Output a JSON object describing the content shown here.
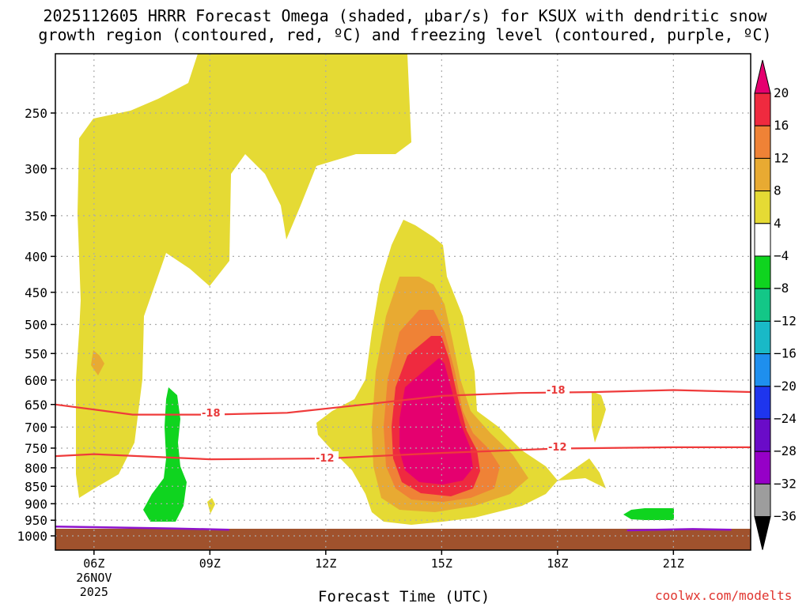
{
  "chart_data": {
    "type": "heatmap",
    "title_line1": "2025112605 HRRR Forecast Omega (shaded, μbar/s) for KSUX with dendritic snow",
    "title_line2": "growth region (contoured, red, ºC) and freezing level (contoured, purple, ºC)",
    "xlabel": "Forecast Time (UTC)",
    "ylabel": "",
    "credit": "coolwx.com/modelts",
    "x_ticks": [
      {
        "hour": 6,
        "label": "06Z",
        "sub1": "26NOV",
        "sub2": "2025"
      },
      {
        "hour": 9,
        "label": "09Z"
      },
      {
        "hour": 12,
        "label": "12Z"
      },
      {
        "hour": 15,
        "label": "15Z"
      },
      {
        "hour": 18,
        "label": "18Z"
      },
      {
        "hour": 21,
        "label": "21Z"
      }
    ],
    "x_range_hours": [
      5,
      23
    ],
    "y_axis": "pressure (hPa), reversed",
    "y_ticks": [
      250,
      300,
      350,
      400,
      450,
      500,
      550,
      600,
      650,
      700,
      750,
      800,
      850,
      900,
      950,
      1000
    ],
    "grid": true,
    "colorbar": {
      "labels": [
        20,
        16,
        12,
        8,
        4,
        -4,
        -8,
        -12,
        -16,
        -20,
        -24,
        -28,
        -32,
        -36
      ],
      "colors": [
        "#e5006f",
        "#ef2a3f",
        "#ef8236",
        "#e8aa32",
        "#e5da34",
        "#ffffff",
        "#0fd41f",
        "#13c787",
        "#19b9c7",
        "#1e8fee",
        "#1e35ee",
        "#6a0bc8",
        "#9600c7",
        "#9d9d9d",
        "#000000"
      ]
    },
    "contours_red": [
      {
        "label": "-18",
        "series": [
          {
            "hour": 5.0,
            "hPa": 650
          },
          {
            "hour": 7.0,
            "hPa": 672
          },
          {
            "hour": 9.0,
            "hPa": 672
          },
          {
            "hour": 11.0,
            "hPa": 668
          },
          {
            "hour": 13.0,
            "hPa": 650
          },
          {
            "hour": 15.0,
            "hPa": 632
          },
          {
            "hour": 17.0,
            "hPa": 626
          },
          {
            "hour": 19.0,
            "hPa": 624
          },
          {
            "hour": 21.0,
            "hPa": 620
          },
          {
            "hour": 23.0,
            "hPa": 624
          }
        ]
      },
      {
        "label": "-12",
        "series": [
          {
            "hour": 5.0,
            "hPa": 770
          },
          {
            "hour": 6.0,
            "hPa": 765
          },
          {
            "hour": 9.0,
            "hPa": 778
          },
          {
            "hour": 12.0,
            "hPa": 776
          },
          {
            "hour": 15.0,
            "hPa": 762
          },
          {
            "hour": 18.0,
            "hPa": 751
          },
          {
            "hour": 21.0,
            "hPa": 748
          },
          {
            "hour": 23.0,
            "hPa": 748
          }
        ]
      }
    ],
    "contours_purple": [
      {
        "label": "0",
        "series": [
          {
            "hour": 5.0,
            "hPa": 970
          },
          {
            "hour": 8.0,
            "hPa": 976
          },
          {
            "hour": 9.5,
            "hPa": 980
          }
        ]
      },
      {
        "label": "0",
        "series": [
          {
            "hour": 19.8,
            "hPa": 982
          },
          {
            "hour": 21.5,
            "hPa": 978
          },
          {
            "hour": 22.5,
            "hPa": 980
          }
        ]
      }
    ]
  }
}
